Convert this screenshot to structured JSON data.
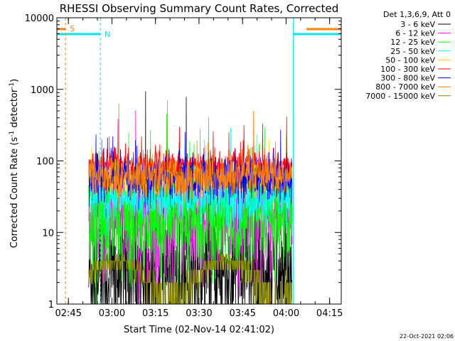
{
  "chart_data": {
    "type": "line",
    "title": "RHESSI Observing Summary Count Rates, Corrected",
    "xlabel": "Start Time (02-Nov-14 02:41:02)",
    "ylabel_main": "Corrected Count Rate (s",
    "ylabel_sup1": "-1",
    "ylabel_mid": " detector",
    "ylabel_sup2": "-1",
    "ylabel_end": ")",
    "y_scale": "log",
    "ylim": [
      1,
      10000
    ],
    "xlim": [
      "02:41:02",
      "04:19:00"
    ],
    "x_ticks": [
      "02:45",
      "03:00",
      "03:15",
      "03:30",
      "03:45",
      "04:00",
      "04:15"
    ],
    "y_ticks": [
      "1",
      "10",
      "100",
      "1000",
      "10000"
    ],
    "grid": false,
    "legend_position": "outside-right",
    "legend_title": "Det 1,3,6,9, Att 0",
    "data_window": [
      "02:52:00",
      "04:02:00"
    ],
    "series": [
      {
        "name": "3 - 6 keV",
        "color": "#000000",
        "level": 2.5,
        "spread": 1.2,
        "max": 1200
      },
      {
        "name": "6 - 12 keV",
        "color": "#ff00ff",
        "level": 14,
        "spread": 0.9,
        "max": 600
      },
      {
        "name": "12 - 25 keV",
        "color": "#00ff00",
        "level": 14,
        "spread": 0.85,
        "max": 800
      },
      {
        "name": "25 - 50 keV",
        "color": "#00ffff",
        "level": 30,
        "spread": 0.35,
        "max": 300
      },
      {
        "name": "50 - 100 keV",
        "color": "#ffd700",
        "level": 50,
        "spread": 0.2,
        "max": 200
      },
      {
        "name": "100 - 300 keV",
        "color": "#ff0000",
        "level": 85,
        "spread": 0.25,
        "max": 500
      },
      {
        "name": "300 - 800 keV",
        "color": "#0000ff",
        "level": 55,
        "spread": 0.35,
        "max": 300
      },
      {
        "name": "800 - 7000 keV",
        "color": "#ff8000",
        "level": 60,
        "spread": 0.35,
        "max": 1000
      },
      {
        "name": "7000 - 15000 keV",
        "color": "#8b8b00",
        "level": 2.5,
        "spread": 0.3,
        "max": 5
      }
    ],
    "annotations": {
      "saa_label": "S",
      "night_label": "N",
      "saa_color": "#ff8000",
      "night_color": "#00e5ee",
      "saa_intervals": [
        [
          "02:41:02",
          "02:44:00"
        ],
        [
          "04:07:00",
          "04:19:00"
        ]
      ],
      "night_intervals": [
        [
          "02:41:02",
          "02:56:00"
        ],
        [
          "04:02:30",
          "04:19:00"
        ]
      ]
    },
    "footer": "22-Oct-2021 02:06"
  }
}
